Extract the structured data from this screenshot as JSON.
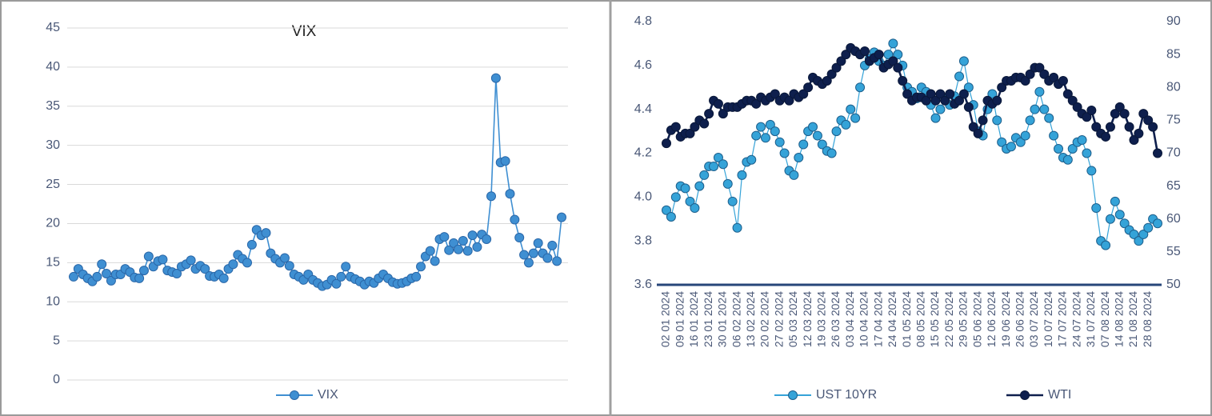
{
  "chart_data": [
    {
      "type": "line",
      "title": "VIX",
      "series": [
        {
          "name": "VIX",
          "color": "#3f8fd2",
          "values": [
            13.2,
            14.2,
            13.5,
            13.0,
            12.6,
            13.2,
            14.8,
            13.6,
            12.7,
            13.5,
            13.5,
            14.2,
            13.8,
            13.1,
            13.0,
            14.0,
            15.8,
            14.5,
            15.2,
            15.4,
            14.0,
            13.8,
            13.6,
            14.5,
            14.8,
            15.3,
            14.2,
            14.6,
            14.2,
            13.3,
            13.2,
            13.5,
            13.0,
            14.2,
            14.8,
            16.0,
            15.5,
            15.0,
            17.3,
            19.2,
            18.5,
            18.8,
            16.2,
            15.5,
            15.0,
            15.6,
            14.6,
            13.5,
            13.2,
            12.8,
            13.5,
            12.8,
            12.4,
            12.0,
            12.2,
            12.8,
            12.3,
            13.2,
            14.5,
            13.2,
            12.9,
            12.6,
            12.2,
            12.6,
            12.4,
            13.0,
            13.5,
            13.0,
            12.5,
            12.3,
            12.4,
            12.6,
            13.0,
            13.2,
            14.5,
            15.8,
            16.5,
            15.2,
            18.0,
            18.3,
            16.6,
            17.5,
            16.7,
            17.8,
            16.5,
            18.5,
            17.0,
            18.6,
            18.0,
            23.5,
            38.6,
            27.8,
            28.0,
            23.8,
            20.5,
            18.2,
            16.0,
            15.0,
            16.2,
            17.5,
            16.2,
            15.6,
            17.2,
            15.2,
            20.8
          ]
        }
      ],
      "ylim": [
        0,
        45
      ],
      "yticks": [
        0,
        5,
        10,
        15,
        20,
        25,
        30,
        35,
        40,
        45
      ],
      "grid": true,
      "legend": "bottom"
    },
    {
      "type": "line",
      "categories": [
        "02 01 2024",
        null,
        null,
        "09 01 2024",
        null,
        null,
        "16 01 2024",
        null,
        null,
        "23 01 2024",
        null,
        null,
        "30 01 2024",
        null,
        null,
        "06 02 2024",
        null,
        null,
        "13 02 2024",
        null,
        null,
        "20 02 2024",
        null,
        null,
        "27 02 2024",
        null,
        null,
        "05 03 2024",
        null,
        null,
        "12 03 2024",
        null,
        null,
        "19 03 2024",
        null,
        null,
        "26 03 2024",
        null,
        null,
        "03 04 2024",
        null,
        null,
        "10 04 2024",
        null,
        null,
        "17 04 2024",
        null,
        null,
        "24 04 2024",
        null,
        null,
        "01 05 2024",
        null,
        null,
        "08 05 2024",
        null,
        null,
        "15 05 2024",
        null,
        null,
        "22 05 2024",
        null,
        null,
        "29 05 2024",
        null,
        null,
        "05 06 2024",
        null,
        null,
        "12 06 2024",
        null,
        null,
        "19 06 2024",
        null,
        null,
        "26 06 2024",
        null,
        null,
        "03 07 2024",
        null,
        null,
        "10 07 2024",
        null,
        null,
        "17 07 2024",
        null,
        null,
        "24 07 2024",
        null,
        null,
        "31 07 2024",
        null,
        null,
        "07 08 2024",
        null,
        null,
        "14 08 2024",
        null,
        null,
        "21 08 2024",
        null,
        null,
        "28 08 2024",
        null,
        null
      ],
      "series": [
        {
          "name": "UST 10YR",
          "color": "#35a3d8",
          "values": [
            3.94,
            3.91,
            4.0,
            4.05,
            4.04,
            3.98,
            3.95,
            4.05,
            4.1,
            4.14,
            4.14,
            4.18,
            4.15,
            4.06,
            3.98,
            3.86,
            4.1,
            4.16,
            4.17,
            4.28,
            4.32,
            4.27,
            4.33,
            4.3,
            4.25,
            4.2,
            4.12,
            4.1,
            4.18,
            4.24,
            4.3,
            4.32,
            4.28,
            4.24,
            4.21,
            4.2,
            4.3,
            4.35,
            4.33,
            4.4,
            4.36,
            4.5,
            4.6,
            4.63,
            4.66,
            4.62,
            4.6,
            4.65,
            4.7,
            4.65,
            4.6,
            4.5,
            4.48,
            4.45,
            4.5,
            4.48,
            4.42,
            4.36,
            4.4,
            4.45,
            4.42,
            4.46,
            4.55,
            4.62,
            4.5,
            4.42,
            4.3,
            4.28,
            4.4,
            4.47,
            4.35,
            4.25,
            4.22,
            4.23,
            4.27,
            4.25,
            4.28,
            4.35,
            4.4,
            4.48,
            4.4,
            4.36,
            4.28,
            4.22,
            4.18,
            4.17,
            4.22,
            4.25,
            4.26,
            4.2,
            4.12,
            3.95,
            3.8,
            3.78,
            3.9,
            3.98,
            3.92,
            3.88,
            3.85,
            3.83,
            3.8,
            3.83,
            3.86,
            3.9,
            3.88
          ]
        },
        {
          "name": "WTI",
          "color": "#0e1f4d",
          "axis": "y2",
          "values": [
            71.5,
            73.5,
            74,
            72.5,
            73,
            73,
            74,
            75,
            74.5,
            76,
            78,
            77.5,
            76,
            77,
            77,
            77,
            77.5,
            78,
            78,
            77.5,
            78.5,
            78,
            78.5,
            79,
            78,
            78.5,
            78,
            79,
            78.5,
            79,
            80,
            81.5,
            81,
            80.5,
            81,
            82,
            83,
            84,
            85,
            86,
            85.5,
            85,
            85.5,
            84,
            84.5,
            85,
            83,
            83.5,
            84,
            83,
            81,
            79,
            78,
            78.5,
            78.5,
            78,
            79,
            78,
            79,
            78,
            79,
            77.5,
            78,
            79,
            77,
            74,
            73,
            75,
            78,
            77.5,
            78,
            80,
            81,
            81,
            81.5,
            81.5,
            81,
            82,
            83,
            83,
            82,
            81,
            81.5,
            80.5,
            81,
            79,
            78,
            77,
            76,
            75.5,
            76.5,
            74,
            73,
            72.5,
            74,
            76,
            77,
            76,
            74,
            72,
            73,
            76,
            75,
            74,
            70
          ]
        }
      ],
      "ylim": [
        3.6,
        4.8
      ],
      "yticks": [
        3.6,
        3.8,
        {
          "value": 4,
          "label": "4.0"
        },
        4.2,
        4.4,
        4.6,
        4.8
      ],
      "y2lim": [
        50,
        90
      ],
      "y2ticks": [
        50,
        55,
        60,
        65,
        70,
        75,
        80,
        85,
        90
      ],
      "grid": false,
      "legend": "bottom"
    }
  ]
}
